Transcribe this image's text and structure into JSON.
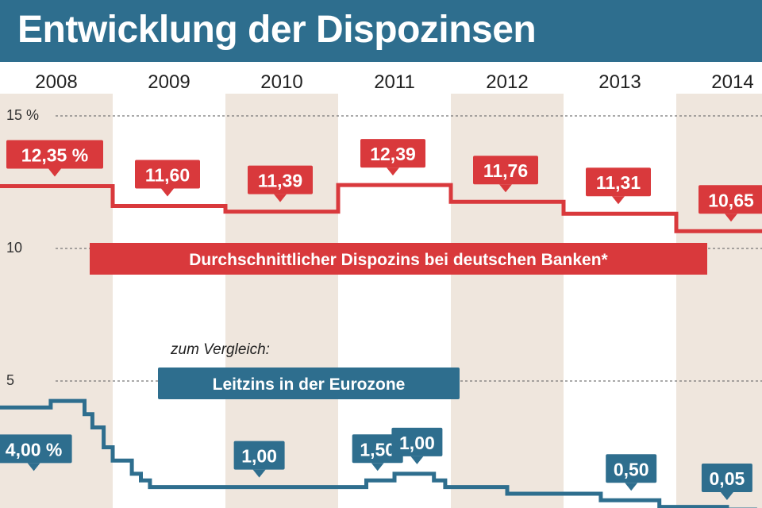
{
  "title": "Entwicklung der Dispozinsen",
  "chart_data": {
    "type": "line",
    "title": "Entwicklung der Dispozinsen",
    "x_categories": [
      "2008",
      "2009",
      "2010",
      "2011",
      "2012",
      "2013",
      "2014"
    ],
    "y_ticks": [
      "15 %",
      "10",
      "5"
    ],
    "ylim": [
      0,
      15
    ],
    "grid": "dashed horizontal lines at 5, 10, 15",
    "series": [
      {
        "name": "Durchschnittlicher Dispozins bei deutschen Banken*",
        "color": "#d9393c",
        "step_values": [
          12.35,
          11.6,
          11.39,
          12.39,
          11.76,
          11.31,
          10.65
        ],
        "labels": [
          "12,35 %",
          "11,60",
          "11,39",
          "12,39",
          "11,76",
          "11,31",
          "10,65"
        ]
      },
      {
        "name": "Leitzins in der Eurozone",
        "color": "#2e6e8e",
        "points": [
          [
            2008.0,
            4.0
          ],
          [
            2008.45,
            4.0
          ],
          [
            2008.45,
            4.25
          ],
          [
            2008.75,
            4.25
          ],
          [
            2008.75,
            3.75
          ],
          [
            2008.82,
            3.75
          ],
          [
            2008.82,
            3.25
          ],
          [
            2008.92,
            3.25
          ],
          [
            2008.92,
            2.5
          ],
          [
            2009.0,
            2.5
          ],
          [
            2009.0,
            2.0
          ],
          [
            2009.17,
            2.0
          ],
          [
            2009.17,
            1.5
          ],
          [
            2009.25,
            1.5
          ],
          [
            2009.25,
            1.25
          ],
          [
            2009.33,
            1.25
          ],
          [
            2009.33,
            1.0
          ],
          [
            2011.25,
            1.0
          ],
          [
            2011.25,
            1.25
          ],
          [
            2011.5,
            1.25
          ],
          [
            2011.5,
            1.5
          ],
          [
            2011.85,
            1.5
          ],
          [
            2011.85,
            1.25
          ],
          [
            2011.95,
            1.25
          ],
          [
            2011.95,
            1.0
          ],
          [
            2012.5,
            1.0
          ],
          [
            2012.5,
            0.75
          ],
          [
            2013.33,
            0.75
          ],
          [
            2013.33,
            0.5
          ],
          [
            2013.85,
            0.5
          ],
          [
            2013.85,
            0.25
          ],
          [
            2014.45,
            0.25
          ],
          [
            2014.45,
            0.15
          ],
          [
            2014.7,
            0.15
          ],
          [
            2014.7,
            0.05
          ],
          [
            2015.0,
            0.05
          ]
        ],
        "labels": [
          {
            "x": 2008.3,
            "text": "4,00 %"
          },
          {
            "x": 2010.3,
            "text": "1,00"
          },
          {
            "x": 2011.35,
            "text": "1,50"
          },
          {
            "x": 2011.7,
            "text": "1,00"
          },
          {
            "x": 2013.6,
            "text": "0,50"
          },
          {
            "x": 2014.45,
            "text": "0,05"
          }
        ]
      }
    ],
    "annotation": "zum Vergleich:"
  }
}
